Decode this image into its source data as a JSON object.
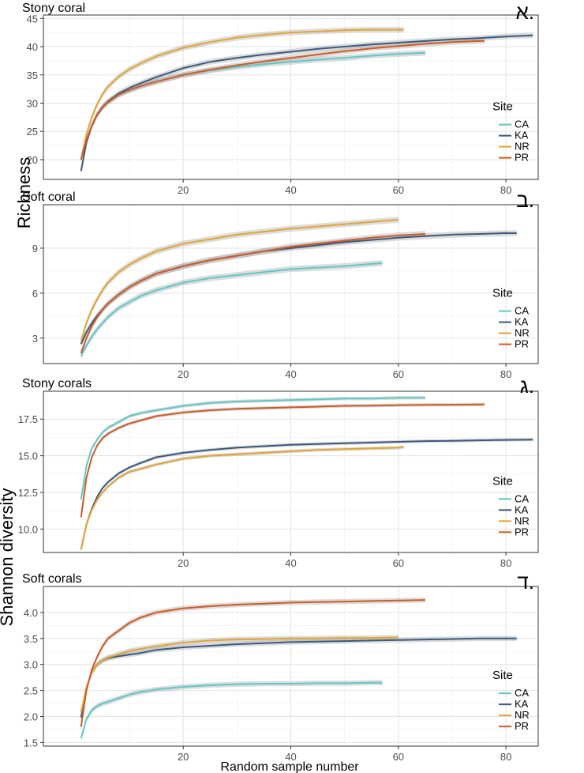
{
  "figure": {
    "ylabel_top": "Richness",
    "ylabel_bottom": "Shannon diversity",
    "xlabel": "Random sample number"
  },
  "legend": {
    "title": "Site",
    "entries": [
      {
        "name": "CA",
        "color": "#5ec9c9"
      },
      {
        "name": "KA",
        "color": "#3a5a80"
      },
      {
        "name": "NR",
        "color": "#e3a532"
      },
      {
        "name": "PR",
        "color": "#d05a24"
      }
    ]
  },
  "chart_data": [
    {
      "type": "line",
      "panel_letter": "א.",
      "title": "Stony coral",
      "ylabel": "Richness",
      "xlim": [
        -6,
        86
      ],
      "ylim": [
        16.5,
        45.6
      ],
      "x_ticks": [
        20,
        40,
        60,
        80
      ],
      "y_ticks": [
        20,
        25,
        30,
        35,
        40,
        45
      ],
      "grid": true,
      "legend_placement": "right",
      "ci_band": 0.5,
      "series": [
        {
          "name": "CA",
          "x": [
            1,
            2,
            3,
            4,
            5,
            6,
            8,
            10,
            12,
            15,
            20,
            25,
            30,
            35,
            40,
            45,
            50,
            55,
            60,
            65
          ],
          "y": [
            20,
            23.5,
            26,
            28,
            29.3,
            30.2,
            31.5,
            32.3,
            33,
            33.8,
            35,
            35.8,
            36.4,
            36.9,
            37.3,
            37.7,
            38,
            38.4,
            38.7,
            38.9
          ]
        },
        {
          "name": "KA",
          "x": [
            1,
            2,
            3,
            4,
            5,
            6,
            8,
            10,
            12,
            15,
            20,
            25,
            30,
            35,
            40,
            45,
            50,
            55,
            60,
            65,
            70,
            75,
            80,
            85
          ],
          "y": [
            18,
            23,
            26,
            28,
            29.3,
            30.3,
            31.7,
            32.7,
            33.5,
            34.6,
            36.2,
            37.3,
            38,
            38.6,
            39.1,
            39.6,
            40,
            40.4,
            40.7,
            41,
            41.3,
            41.5,
            41.8,
            42
          ]
        },
        {
          "name": "NR",
          "x": [
            1,
            2,
            3,
            4,
            5,
            6,
            8,
            10,
            12,
            15,
            20,
            25,
            30,
            35,
            40,
            45,
            50,
            55,
            60,
            61
          ],
          "y": [
            20,
            24.5,
            27.5,
            29.8,
            31.6,
            32.9,
            34.7,
            36,
            37,
            38.3,
            39.8,
            40.8,
            41.6,
            42.1,
            42.5,
            42.7,
            42.9,
            43,
            43,
            43
          ]
        },
        {
          "name": "PR",
          "x": [
            1,
            2,
            3,
            4,
            5,
            6,
            8,
            10,
            12,
            15,
            20,
            25,
            30,
            35,
            40,
            45,
            50,
            55,
            60,
            65,
            70,
            75,
            76
          ],
          "y": [
            20,
            23.5,
            26,
            28,
            29.3,
            30.2,
            31.5,
            32.3,
            33,
            33.8,
            35,
            35.9,
            36.7,
            37.4,
            38,
            38.6,
            39.2,
            39.7,
            40.1,
            40.5,
            40.8,
            41,
            41
          ]
        }
      ]
    },
    {
      "type": "line",
      "panel_letter": "ב.",
      "title": "Soft coral",
      "ylabel": "Richness",
      "xlim": [
        -6,
        86
      ],
      "ylim": [
        1.3,
        11.9
      ],
      "x_ticks": [
        20,
        40,
        60,
        80
      ],
      "y_ticks": [
        3,
        6,
        9
      ],
      "grid": true,
      "legend_placement": "right",
      "ci_band": 0.2,
      "series": [
        {
          "name": "CA",
          "x": [
            1,
            2,
            3,
            4,
            5,
            6,
            8,
            10,
            12,
            15,
            20,
            25,
            30,
            35,
            40,
            45,
            50,
            55,
            57
          ],
          "y": [
            1.8,
            2.5,
            3.1,
            3.6,
            4,
            4.4,
            5,
            5.4,
            5.8,
            6.2,
            6.7,
            7,
            7.2,
            7.4,
            7.6,
            7.7,
            7.8,
            7.95,
            8
          ]
        },
        {
          "name": "KA",
          "x": [
            1,
            2,
            3,
            4,
            5,
            6,
            8,
            10,
            12,
            15,
            20,
            25,
            30,
            35,
            40,
            45,
            50,
            55,
            60,
            65,
            70,
            75,
            80,
            82
          ],
          "y": [
            2.6,
            3.4,
            4,
            4.5,
            4.9,
            5.3,
            5.9,
            6.4,
            6.8,
            7.3,
            7.8,
            8.2,
            8.5,
            8.8,
            9,
            9.2,
            9.4,
            9.55,
            9.7,
            9.8,
            9.9,
            9.95,
            10,
            10
          ]
        },
        {
          "name": "NR",
          "x": [
            1,
            2,
            3,
            4,
            5,
            6,
            8,
            10,
            12,
            15,
            20,
            25,
            30,
            35,
            40,
            45,
            50,
            55,
            60
          ],
          "y": [
            2.8,
            4,
            4.9,
            5.6,
            6.2,
            6.7,
            7.4,
            7.9,
            8.3,
            8.8,
            9.3,
            9.6,
            9.9,
            10.1,
            10.3,
            10.45,
            10.6,
            10.75,
            10.9
          ]
        },
        {
          "name": "PR",
          "x": [
            1,
            2,
            3,
            4,
            5,
            6,
            8,
            10,
            12,
            15,
            20,
            25,
            30,
            35,
            40,
            45,
            50,
            55,
            60,
            65
          ],
          "y": [
            2,
            3,
            3.8,
            4.4,
            4.9,
            5.3,
            5.9,
            6.4,
            6.8,
            7.3,
            7.8,
            8.2,
            8.5,
            8.8,
            9.1,
            9.3,
            9.5,
            9.7,
            9.85,
            9.95
          ]
        }
      ]
    },
    {
      "type": "line",
      "panel_letter": "ג.",
      "title": "Stony corals",
      "ylabel": "Shannon diversity",
      "xlim": [
        -6,
        86
      ],
      "ylim": [
        8.4,
        19.4
      ],
      "x_ticks": [
        20,
        40,
        60,
        80
      ],
      "y_ticks": [
        10.0,
        12.5,
        15.0,
        17.5
      ],
      "grid": true,
      "legend_placement": "right",
      "ci_band": 0.12,
      "series": [
        {
          "name": "CA",
          "x": [
            1,
            2,
            3,
            4,
            5,
            6,
            8,
            10,
            12,
            15,
            20,
            25,
            30,
            35,
            40,
            45,
            50,
            55,
            60,
            65
          ],
          "y": [
            12,
            14.3,
            15.5,
            16.1,
            16.6,
            16.9,
            17.3,
            17.7,
            17.9,
            18.1,
            18.4,
            18.6,
            18.7,
            18.75,
            18.8,
            18.85,
            18.9,
            18.9,
            18.95,
            18.95
          ]
        },
        {
          "name": "KA",
          "x": [
            1,
            2,
            3,
            4,
            5,
            6,
            8,
            10,
            12,
            15,
            20,
            25,
            30,
            35,
            40,
            45,
            50,
            55,
            60,
            65,
            70,
            75,
            80,
            85
          ],
          "y": [
            8.6,
            10.3,
            11.4,
            12.2,
            12.8,
            13.2,
            13.8,
            14.2,
            14.5,
            14.9,
            15.2,
            15.4,
            15.55,
            15.65,
            15.75,
            15.8,
            15.85,
            15.9,
            15.95,
            16,
            16.02,
            16.05,
            16.08,
            16.1
          ]
        },
        {
          "name": "NR",
          "x": [
            1,
            2,
            3,
            4,
            5,
            6,
            8,
            10,
            12,
            15,
            20,
            25,
            30,
            35,
            40,
            45,
            50,
            55,
            60,
            61
          ],
          "y": [
            8.6,
            10.3,
            11.3,
            12,
            12.5,
            12.9,
            13.5,
            13.9,
            14.1,
            14.4,
            14.8,
            15,
            15.1,
            15.2,
            15.3,
            15.4,
            15.45,
            15.5,
            15.55,
            15.6
          ]
        },
        {
          "name": "PR",
          "x": [
            1,
            2,
            3,
            4,
            5,
            6,
            8,
            10,
            12,
            15,
            20,
            25,
            30,
            35,
            40,
            45,
            50,
            55,
            60,
            65,
            70,
            75,
            76
          ],
          "y": [
            10.8,
            13.5,
            14.9,
            15.7,
            16.2,
            16.5,
            16.9,
            17.2,
            17.4,
            17.7,
            17.95,
            18.1,
            18.2,
            18.25,
            18.3,
            18.35,
            18.4,
            18.42,
            18.45,
            18.47,
            18.48,
            18.5,
            18.5
          ]
        }
      ]
    },
    {
      "type": "line",
      "panel_letter": "ד.",
      "title": "Soft corals",
      "ylabel": "Shannon diversity",
      "xlim": [
        -6,
        86
      ],
      "ylim": [
        1.43,
        4.5
      ],
      "x_ticks": [
        20,
        40,
        60,
        80
      ],
      "y_ticks": [
        1.5,
        2.0,
        2.5,
        3.0,
        3.5,
        4.0
      ],
      "grid": true,
      "legend_placement": "right",
      "ci_band": 0.05,
      "series": [
        {
          "name": "CA",
          "x": [
            1,
            2,
            3,
            4,
            5,
            6,
            8,
            10,
            12,
            15,
            20,
            25,
            30,
            35,
            40,
            45,
            50,
            55,
            57
          ],
          "y": [
            1.58,
            1.95,
            2.12,
            2.2,
            2.25,
            2.28,
            2.35,
            2.42,
            2.47,
            2.52,
            2.57,
            2.6,
            2.62,
            2.63,
            2.63,
            2.64,
            2.64,
            2.65,
            2.65
          ]
        },
        {
          "name": "KA",
          "x": [
            1,
            2,
            3,
            4,
            5,
            6,
            8,
            10,
            12,
            15,
            20,
            25,
            30,
            35,
            40,
            45,
            50,
            55,
            60,
            65,
            70,
            75,
            80,
            82
          ],
          "y": [
            1.98,
            2.55,
            2.85,
            3.0,
            3.08,
            3.12,
            3.16,
            3.19,
            3.22,
            3.28,
            3.33,
            3.36,
            3.39,
            3.41,
            3.43,
            3.44,
            3.45,
            3.46,
            3.47,
            3.48,
            3.49,
            3.5,
            3.5,
            3.5
          ]
        },
        {
          "name": "NR",
          "x": [
            1,
            2,
            3,
            4,
            5,
            6,
            8,
            10,
            12,
            15,
            20,
            25,
            30,
            35,
            40,
            45,
            50,
            55,
            60
          ],
          "y": [
            2.08,
            2.55,
            2.85,
            3.0,
            3.08,
            3.13,
            3.2,
            3.26,
            3.3,
            3.35,
            3.42,
            3.46,
            3.48,
            3.49,
            3.5,
            3.5,
            3.51,
            3.51,
            3.52
          ]
        },
        {
          "name": "PR",
          "x": [
            1,
            2,
            3,
            4,
            5,
            6,
            8,
            10,
            12,
            15,
            20,
            25,
            30,
            35,
            40,
            45,
            50,
            55,
            60,
            65
          ],
          "y": [
            1.8,
            2.5,
            2.9,
            3.15,
            3.35,
            3.5,
            3.65,
            3.8,
            3.9,
            4.0,
            4.08,
            4.12,
            4.15,
            4.17,
            4.19,
            4.2,
            4.21,
            4.22,
            4.23,
            4.24
          ]
        }
      ]
    }
  ]
}
